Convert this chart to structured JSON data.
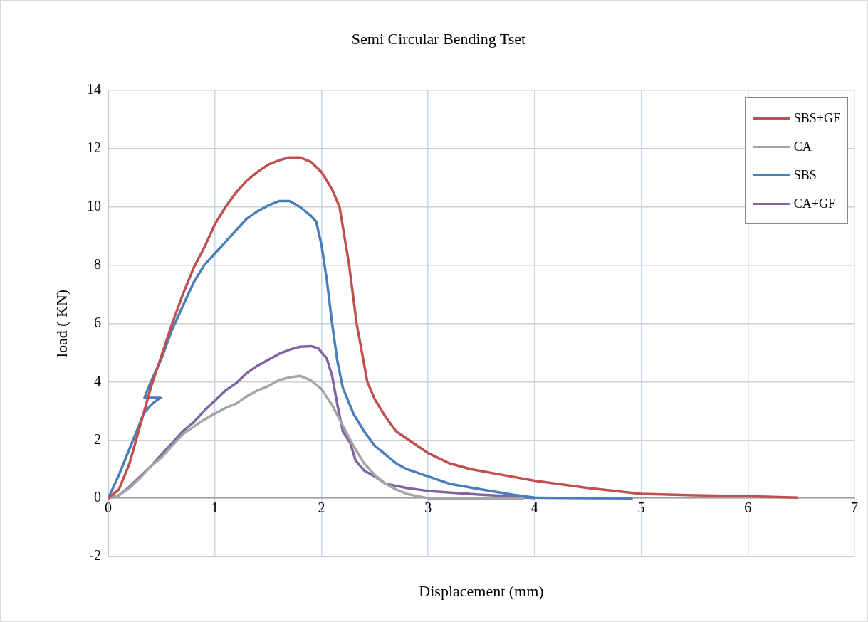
{
  "chart_data": {
    "type": "line",
    "title": "Semi Circular Bending Tset",
    "xlabel": "Displacement (mm)",
    "ylabel": "load ( KN)",
    "xlim": [
      0,
      7
    ],
    "xticks": [
      0,
      1,
      2,
      3,
      4,
      5,
      6,
      7
    ],
    "ylim": [
      -2,
      14
    ],
    "yticks": [
      -2,
      0,
      2,
      4,
      6,
      8,
      10,
      12,
      14
    ],
    "grid": true,
    "legend": "top right",
    "marker": "none",
    "line_style": "solid",
    "series": [
      {
        "name": "SBS+GF",
        "color": "#c0504d",
        "x": [
          0,
          0.1,
          0.2,
          0.3,
          0.4,
          0.5,
          0.6,
          0.7,
          0.8,
          0.9,
          1.0,
          1.1,
          1.2,
          1.3,
          1.4,
          1.5,
          1.6,
          1.7,
          1.8,
          1.9,
          2.0,
          2.1,
          2.17,
          2.26,
          2.33,
          2.43,
          2.5,
          2.6,
          2.7,
          2.82,
          3.0,
          3.2,
          3.4,
          3.7,
          4.0,
          4.5,
          5.0,
          5.5,
          6.0,
          6.47
        ],
        "values": [
          0,
          0.3,
          1.2,
          2.5,
          3.8,
          4.9,
          6.0,
          7.0,
          7.9,
          8.6,
          9.4,
          10.0,
          10.5,
          10.9,
          11.2,
          11.45,
          11.6,
          11.7,
          11.7,
          11.55,
          11.2,
          10.6,
          10.0,
          8.0,
          6.0,
          4.0,
          3.4,
          2.8,
          2.3,
          2.0,
          1.55,
          1.2,
          1.0,
          0.8,
          0.6,
          0.35,
          0.15,
          0.1,
          0.07,
          0.02
        ]
      },
      {
        "name": "CA",
        "color": "#a5a5a5",
        "x": [
          0,
          0.1,
          0.2,
          0.3,
          0.4,
          0.5,
          0.6,
          0.7,
          0.8,
          0.9,
          1.0,
          1.1,
          1.2,
          1.3,
          1.4,
          1.5,
          1.6,
          1.7,
          1.8,
          1.9,
          2.0,
          2.1,
          2.2,
          2.3,
          2.4,
          2.5,
          2.6,
          2.7,
          2.8,
          3.0,
          3.5,
          3.9
        ],
        "values": [
          0,
          0.1,
          0.35,
          0.7,
          1.1,
          1.4,
          1.8,
          2.2,
          2.45,
          2.7,
          2.9,
          3.1,
          3.25,
          3.5,
          3.7,
          3.85,
          4.05,
          4.15,
          4.2,
          4.05,
          3.75,
          3.2,
          2.5,
          1.8,
          1.2,
          0.8,
          0.5,
          0.3,
          0.15,
          0,
          0,
          0
        ]
      },
      {
        "name": "SBS",
        "color": "#4a7ebb",
        "x": [
          0,
          0.1,
          0.2,
          0.3,
          0.33,
          0.4,
          0.45,
          0.49,
          0.34,
          0.4,
          0.5,
          0.6,
          0.7,
          0.8,
          0.9,
          1.0,
          1.1,
          1.2,
          1.3,
          1.4,
          1.5,
          1.6,
          1.7,
          1.8,
          1.9,
          1.95,
          2.0,
          2.05,
          2.1,
          2.15,
          2.2,
          2.3,
          2.4,
          2.5,
          2.6,
          2.7,
          2.8,
          3.0,
          3.2,
          3.5,
          3.8,
          4.0,
          4.5,
          4.92
        ],
        "values": [
          0,
          0.8,
          1.7,
          2.6,
          2.9,
          3.2,
          3.35,
          3.45,
          3.45,
          4.0,
          4.8,
          5.8,
          6.6,
          7.4,
          8.0,
          8.4,
          8.8,
          9.2,
          9.6,
          9.85,
          10.05,
          10.2,
          10.2,
          10.0,
          9.7,
          9.5,
          8.7,
          7.5,
          6.0,
          4.7,
          3.8,
          2.9,
          2.3,
          1.8,
          1.5,
          1.2,
          1.0,
          0.75,
          0.5,
          0.3,
          0.12,
          0.02,
          0,
          0
        ]
      },
      {
        "name": "CA+GF",
        "color": "#8064a2",
        "x": [
          0,
          0.1,
          0.2,
          0.3,
          0.4,
          0.5,
          0.6,
          0.7,
          0.8,
          0.9,
          1.0,
          1.1,
          1.2,
          1.3,
          1.4,
          1.5,
          1.6,
          1.7,
          1.8,
          1.9,
          1.97,
          2.05,
          2.1,
          2.15,
          2.2,
          2.27,
          2.32,
          2.4,
          2.5,
          2.6,
          2.8,
          3.0,
          3.5,
          3.85,
          4.0
        ],
        "values": [
          0,
          0.1,
          0.4,
          0.75,
          1.1,
          1.5,
          1.9,
          2.3,
          2.6,
          3.0,
          3.35,
          3.7,
          3.95,
          4.3,
          4.55,
          4.75,
          4.95,
          5.1,
          5.2,
          5.22,
          5.15,
          4.8,
          4.2,
          3.2,
          2.3,
          1.9,
          1.3,
          0.95,
          0.75,
          0.5,
          0.35,
          0.25,
          0.12,
          0.05,
          0
        ]
      }
    ]
  }
}
